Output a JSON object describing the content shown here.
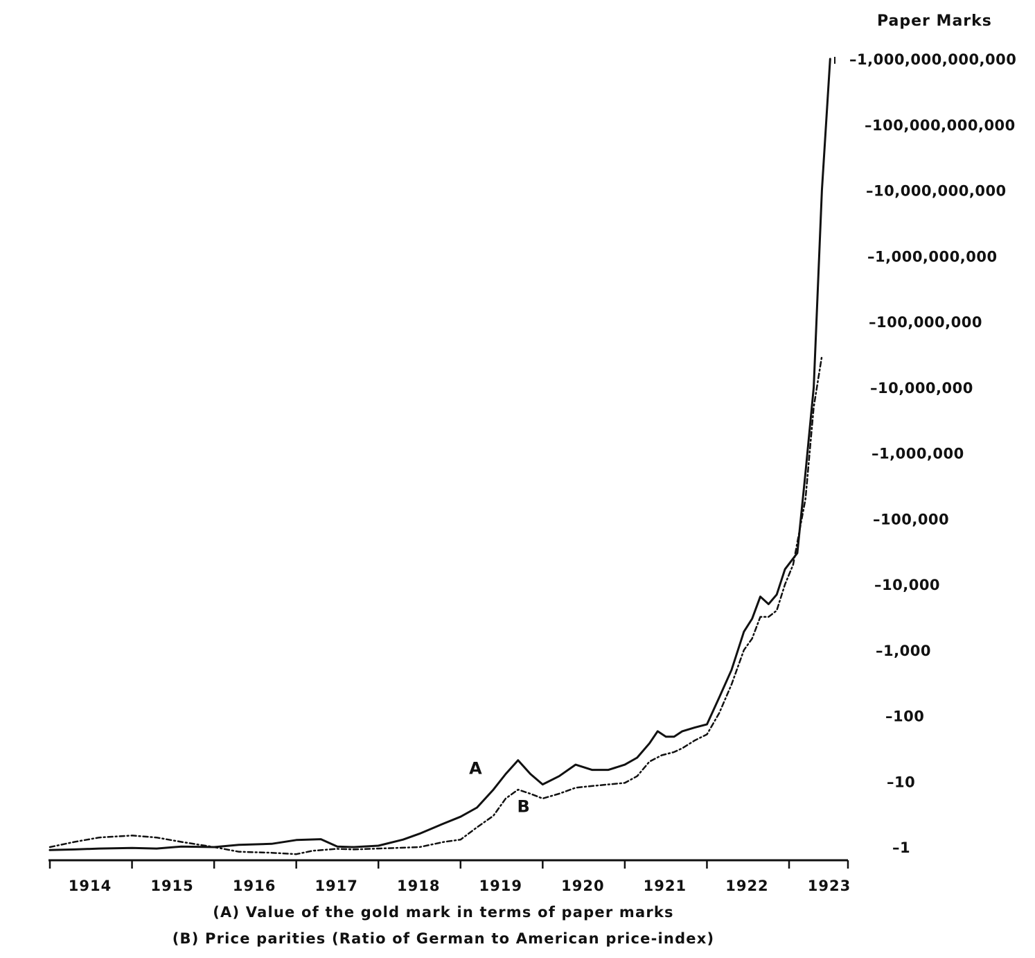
{
  "chart_data": {
    "type": "line",
    "ylabel": "Paper Marks",
    "yscale": "log",
    "ylim": [
      1,
      1000000000000
    ],
    "xlim": [
      1914.0,
      1923.7
    ],
    "grid": false,
    "y_ticks": [
      {
        "value": 1,
        "label": "1"
      },
      {
        "value": 10,
        "label": "10"
      },
      {
        "value": 100,
        "label": "100"
      },
      {
        "value": 1000,
        "label": "1,000"
      },
      {
        "value": 10000,
        "label": "10,000"
      },
      {
        "value": 100000,
        "label": "100,000"
      },
      {
        "value": 1000000,
        "label": "1,000,000"
      },
      {
        "value": 10000000,
        "label": "10,000,000"
      },
      {
        "value": 100000000,
        "label": "100,000,000"
      },
      {
        "value": 1000000000,
        "label": "1,000,000,000"
      },
      {
        "value": 10000000000,
        "label": "10,000,000,000"
      },
      {
        "value": 100000000000,
        "label": "100,000,000,000"
      },
      {
        "value": 1000000000000,
        "label": "1,000,000,000,000"
      }
    ],
    "x_ticks": [
      {
        "value": 1914,
        "label": "1914"
      },
      {
        "value": 1915,
        "label": "1915"
      },
      {
        "value": 1916,
        "label": "1916"
      },
      {
        "value": 1917,
        "label": "1917"
      },
      {
        "value": 1918,
        "label": "1918"
      },
      {
        "value": 1919,
        "label": "1919"
      },
      {
        "value": 1920,
        "label": "1920"
      },
      {
        "value": 1921,
        "label": "1921"
      },
      {
        "value": 1922,
        "label": "1922"
      },
      {
        "value": 1923,
        "label": "1923"
      }
    ],
    "annotations": [
      {
        "text": "A",
        "series": 0
      },
      {
        "text": "B",
        "series": 1
      }
    ],
    "captions": [
      "(A) Value of the gold mark in terms of paper marks",
      "(B) Price parities (Ratio of German to American price-index)"
    ],
    "series": [
      {
        "name": "A",
        "style": "solid",
        "points": [
          [
            1914.0,
            0.9
          ],
          [
            1914.3,
            0.92
          ],
          [
            1914.6,
            0.95
          ],
          [
            1915.0,
            0.97
          ],
          [
            1915.3,
            0.95
          ],
          [
            1915.6,
            1.02
          ],
          [
            1916.0,
            1.0
          ],
          [
            1916.3,
            1.08
          ],
          [
            1916.7,
            1.12
          ],
          [
            1917.0,
            1.28
          ],
          [
            1917.3,
            1.32
          ],
          [
            1917.5,
            1.02
          ],
          [
            1917.7,
            1.0
          ],
          [
            1918.0,
            1.05
          ],
          [
            1918.3,
            1.3
          ],
          [
            1918.5,
            1.6
          ],
          [
            1918.8,
            2.3
          ],
          [
            1919.0,
            2.9
          ],
          [
            1919.2,
            4.0
          ],
          [
            1919.4,
            7.5
          ],
          [
            1919.55,
            13
          ],
          [
            1919.7,
            21
          ],
          [
            1919.85,
            13
          ],
          [
            1920.0,
            9
          ],
          [
            1920.2,
            12
          ],
          [
            1920.4,
            18
          ],
          [
            1920.6,
            15
          ],
          [
            1920.8,
            15
          ],
          [
            1921.0,
            18
          ],
          [
            1921.15,
            23
          ],
          [
            1921.3,
            38
          ],
          [
            1921.4,
            58
          ],
          [
            1921.5,
            48
          ],
          [
            1921.6,
            48
          ],
          [
            1921.7,
            58
          ],
          [
            1921.85,
            66
          ],
          [
            1922.0,
            74
          ],
          [
            1922.15,
            190
          ],
          [
            1922.3,
            500
          ],
          [
            1922.45,
            1900
          ],
          [
            1922.55,
            3000
          ],
          [
            1922.65,
            6500
          ],
          [
            1922.75,
            5000
          ],
          [
            1922.85,
            7000
          ],
          [
            1922.95,
            17000
          ],
          [
            1923.1,
            30000
          ],
          [
            1923.2,
            500000
          ],
          [
            1923.3,
            10000000
          ],
          [
            1923.4,
            10000000000
          ],
          [
            1923.5,
            1000000000000
          ]
        ]
      },
      {
        "name": "B",
        "style": "dashed",
        "points": [
          [
            1914.0,
            1.0
          ],
          [
            1914.3,
            1.2
          ],
          [
            1914.6,
            1.4
          ],
          [
            1915.0,
            1.5
          ],
          [
            1915.3,
            1.4
          ],
          [
            1915.6,
            1.2
          ],
          [
            1916.0,
            1.0
          ],
          [
            1916.3,
            0.85
          ],
          [
            1916.7,
            0.82
          ],
          [
            1917.0,
            0.78
          ],
          [
            1917.2,
            0.88
          ],
          [
            1917.5,
            0.94
          ],
          [
            1917.7,
            0.92
          ],
          [
            1918.0,
            0.95
          ],
          [
            1918.5,
            1.0
          ],
          [
            1918.8,
            1.2
          ],
          [
            1919.0,
            1.3
          ],
          [
            1919.2,
            2.0
          ],
          [
            1919.4,
            3.0
          ],
          [
            1919.55,
            5.5
          ],
          [
            1919.7,
            7.5
          ],
          [
            1919.85,
            6.5
          ],
          [
            1920.0,
            5.5
          ],
          [
            1920.2,
            6.5
          ],
          [
            1920.4,
            8
          ],
          [
            1920.6,
            8.5
          ],
          [
            1920.8,
            9
          ],
          [
            1921.0,
            9.5
          ],
          [
            1921.15,
            12
          ],
          [
            1921.3,
            20
          ],
          [
            1921.45,
            25
          ],
          [
            1921.6,
            28
          ],
          [
            1921.7,
            32
          ],
          [
            1921.85,
            42
          ],
          [
            1922.0,
            52
          ],
          [
            1922.15,
            110
          ],
          [
            1922.3,
            300
          ],
          [
            1922.45,
            1000
          ],
          [
            1922.55,
            1500
          ],
          [
            1922.65,
            3200
          ],
          [
            1922.75,
            3200
          ],
          [
            1922.85,
            4000
          ],
          [
            1922.95,
            10000
          ],
          [
            1923.05,
            20000
          ],
          [
            1923.2,
            200000
          ],
          [
            1923.3,
            5000000
          ],
          [
            1923.4,
            30000000
          ]
        ]
      }
    ]
  }
}
